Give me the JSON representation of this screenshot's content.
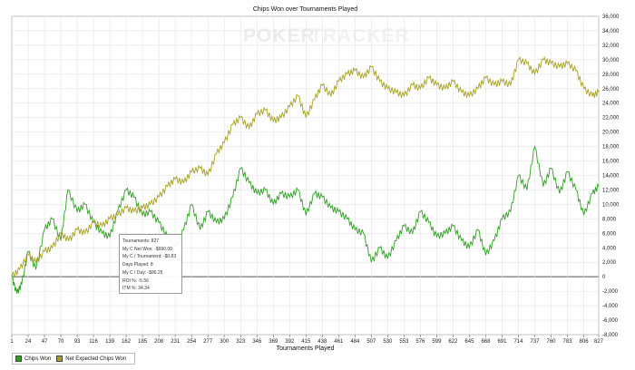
{
  "chart_data": {
    "type": "line",
    "title": "Chips Won over Tournaments Played",
    "xlabel": "Tournaments Played",
    "ylabel": "",
    "x_ticks": [
      1,
      24,
      47,
      70,
      93,
      116,
      139,
      162,
      185,
      208,
      231,
      254,
      277,
      300,
      323,
      346,
      369,
      392,
      415,
      438,
      461,
      484,
      507,
      530,
      553,
      576,
      599,
      622,
      645,
      668,
      691,
      714,
      737,
      760,
      783,
      806,
      827
    ],
    "xlim": [
      1,
      827
    ],
    "ylim": [
      -8000,
      36000
    ],
    "y_ticks": [
      -8000,
      -6000,
      -4000,
      -2000,
      0,
      2000,
      4000,
      6000,
      8000,
      10000,
      12000,
      14000,
      16000,
      18000,
      20000,
      22000,
      24000,
      26000,
      28000,
      30000,
      32000,
      34000,
      36000
    ],
    "y_tick_labels": [
      "-8,000",
      "-6,000",
      "-4,000",
      "-2,000",
      "0",
      "2,000",
      "4,000",
      "6,000",
      "8,000",
      "10,000",
      "12,000",
      "14,000",
      "16,000",
      "18,000",
      "20,000",
      "22,000",
      "24,000",
      "26,000",
      "28,000",
      "30,000",
      "32,000",
      "34,000",
      "36,000"
    ],
    "grid": true,
    "legend": "bottom-left",
    "series": [
      {
        "name": "Chips Won",
        "color": "#2f9e22",
        "x": [
          1,
          8,
          15,
          24,
          35,
          47,
          58,
          70,
          80,
          93,
          104,
          116,
          128,
          139,
          150,
          162,
          173,
          185,
          196,
          208,
          220,
          231,
          243,
          254,
          266,
          277,
          289,
          300,
          312,
          323,
          335,
          346,
          358,
          369,
          380,
          392,
          404,
          415,
          427,
          438,
          450,
          461,
          473,
          484,
          496,
          507,
          519,
          530,
          542,
          553,
          565,
          576,
          588,
          599,
          611,
          622,
          634,
          645,
          657,
          668,
          680,
          691,
          703,
          714,
          726,
          737,
          749,
          760,
          772,
          783,
          795,
          806,
          818,
          827
        ],
        "y": [
          0,
          -2300,
          -1000,
          3500,
          1000,
          6500,
          8000,
          5000,
          12000,
          9000,
          10000,
          7500,
          6000,
          5500,
          9000,
          12000,
          11000,
          8500,
          9000,
          7500,
          5500,
          4000,
          6500,
          10000,
          6500,
          9000,
          7500,
          8000,
          11000,
          15000,
          13000,
          11500,
          12000,
          10000,
          11500,
          11000,
          12000,
          8500,
          11500,
          11000,
          9500,
          9000,
          8000,
          6500,
          6000,
          2000,
          4000,
          2500,
          5000,
          7000,
          6000,
          9000,
          7500,
          5500,
          6000,
          7000,
          5000,
          4000,
          6500,
          3000,
          5000,
          8000,
          9000,
          14000,
          12000,
          18000,
          12500,
          15000,
          11500,
          14500,
          12000,
          8500,
          11500,
          12500
        ]
      },
      {
        "name": "Net Expected Chips Won",
        "color": "#a8a020",
        "x": [
          1,
          12,
          24,
          35,
          47,
          58,
          70,
          81,
          93,
          104,
          116,
          128,
          139,
          150,
          162,
          173,
          185,
          196,
          208,
          220,
          231,
          243,
          254,
          266,
          277,
          289,
          300,
          312,
          323,
          335,
          346,
          358,
          369,
          380,
          392,
          404,
          415,
          427,
          438,
          450,
          461,
          473,
          484,
          496,
          507,
          519,
          530,
          542,
          553,
          565,
          576,
          588,
          599,
          611,
          622,
          634,
          645,
          657,
          668,
          680,
          691,
          703,
          714,
          726,
          737,
          749,
          760,
          772,
          783,
          795,
          806,
          818,
          827
        ],
        "y": [
          0,
          1000,
          3000,
          2000,
          3500,
          4000,
          6000,
          5000,
          6500,
          6000,
          7500,
          7000,
          8000,
          8500,
          9500,
          9000,
          9500,
          10000,
          11000,
          12500,
          13500,
          13000,
          14500,
          15000,
          14000,
          17000,
          18500,
          21000,
          22000,
          20500,
          22500,
          23000,
          21500,
          22000,
          23500,
          25000,
          22000,
          24500,
          26500,
          25000,
          27000,
          28000,
          28500,
          27500,
          29000,
          27000,
          26000,
          25500,
          25000,
          26500,
          26000,
          27500,
          26500,
          26000,
          27000,
          25500,
          25000,
          26000,
          27500,
          26500,
          27000,
          26500,
          30000,
          29500,
          28000,
          30000,
          29500,
          29000,
          29500,
          28500,
          26000,
          25000,
          25500
        ]
      }
    ]
  },
  "watermark": {
    "part1": "POKER",
    "part2": "TRACKER"
  },
  "legend": {
    "items": [
      {
        "label": "Chips Won",
        "color": "#2f9e22"
      },
      {
        "label": "Net Expected Chips Won",
        "color": "#a8a020"
      }
    ]
  },
  "tooltip": {
    "tournaments": "Tournaments: 827",
    "net_won": "My C Net Won: -$690.00",
    "per_tournament": "My C / Tournament: -$0.83",
    "days_played": "Days Played: 8",
    "per_day": "My C / Day: -$86.25",
    "roi": "ROI %: -5.56",
    "itm": "ITM %: 34.34"
  },
  "right_marker": "→"
}
